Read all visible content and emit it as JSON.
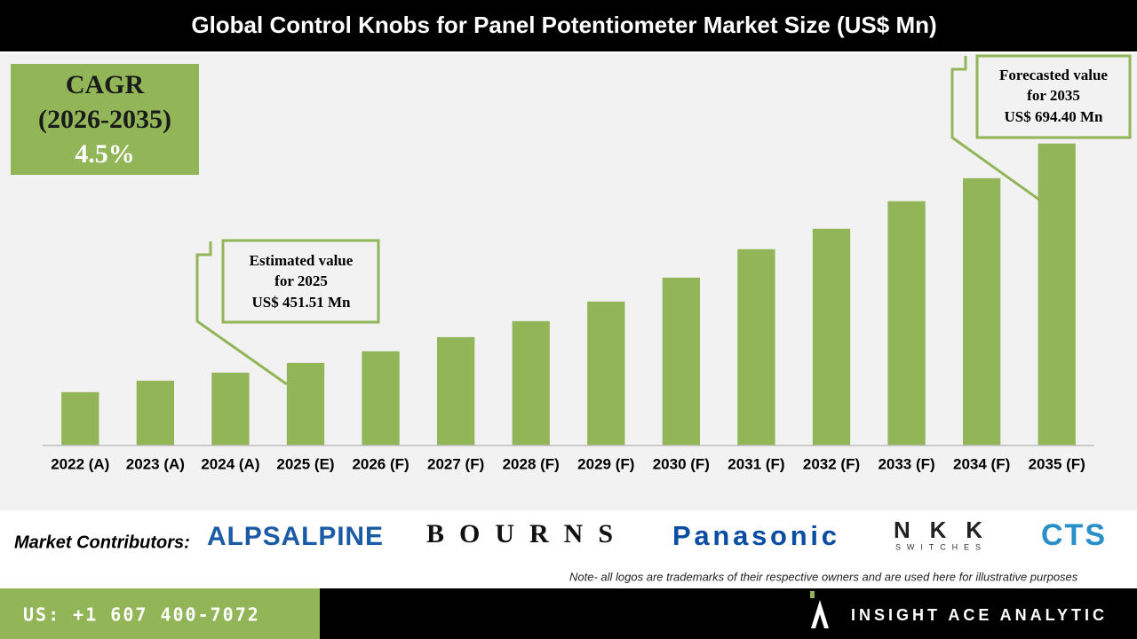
{
  "chart_data": {
    "type": "bar",
    "title": "Global Control Knobs for Panel Potentiometer Market Size (US$ Mn)",
    "categories": [
      "2022 (A)",
      "2023 (A)",
      "2024 (A)",
      "2025 (E)",
      "2026 (F)",
      "2027 (F)",
      "2028 (F)",
      "2029 (F)",
      "2030 (F)",
      "2031 (F)",
      "2032 (F)",
      "2033 (F)",
      "2034 (F)",
      "2035 (F)"
    ],
    "values": [
      419.1,
      431.8,
      440.7,
      451.51,
      464.3,
      480.0,
      497.7,
      519.4,
      545.9,
      577.4,
      600.0,
      630.5,
      656.0,
      694.4
    ],
    "color": "#92b558",
    "ylim": [
      360,
      700
    ],
    "annotations": [
      {
        "lines": [
          "Estimated value",
          "for 2025",
          "US$ 451.51 Mn"
        ]
      },
      {
        "lines": [
          "Forecasted value",
          "for 2035",
          "US$ 694.40 Mn"
        ]
      }
    ]
  },
  "cagr": {
    "lines": [
      "CAGR",
      "(2026-2035)",
      "4.5%"
    ]
  },
  "contributors": {
    "label": "Market Contributors:",
    "logos": [
      "ALPSALPINE",
      "BOURNS",
      "Panasonic",
      "NKK",
      "SWITCHES",
      "CTS"
    ]
  },
  "note": "Note- all logos are trademarks of their respective owners and are used here for illustrative purposes",
  "footer": {
    "phone": "US: +1 607 400-7072",
    "brand": "INSIGHT ACE ANALYTIC"
  }
}
